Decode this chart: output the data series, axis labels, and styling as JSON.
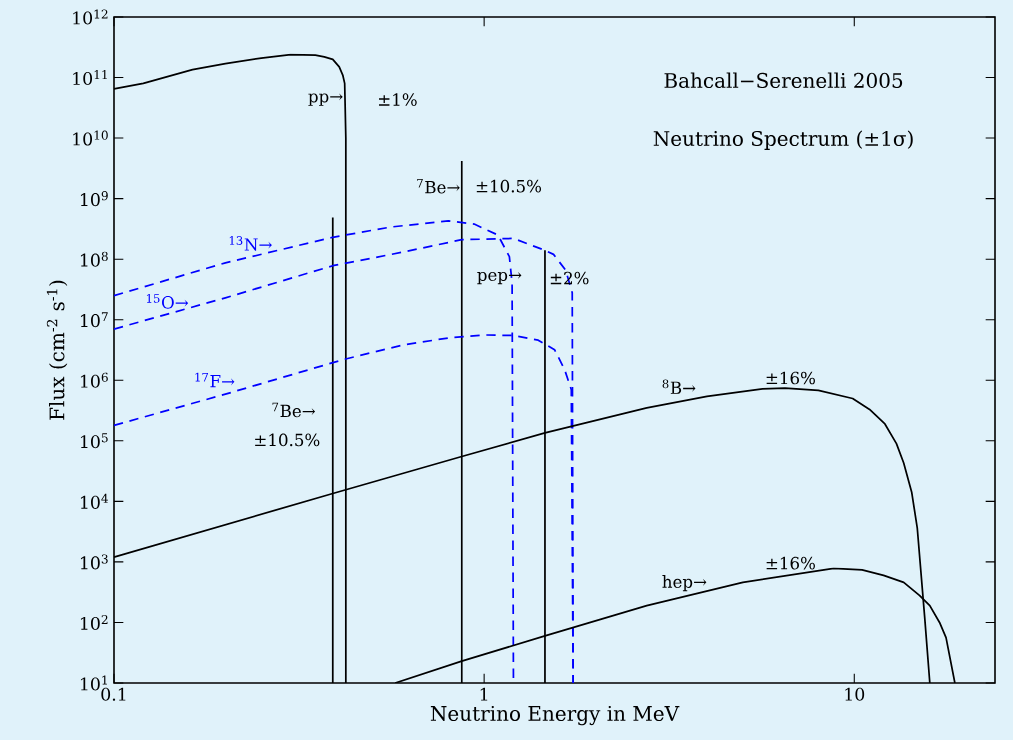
{
  "chart_data": {
    "type": "line",
    "title": "Bahcall−Serenelli 2005",
    "subtitle": "Neutrino Spectrum (±1σ)",
    "xlabel": "Neutrino Energy in MeV",
    "ylabel": "Flux (cm$^{-2}$ s$^{-1}$)",
    "log": "xy",
    "xlim": [
      0.1,
      24
    ],
    "ylim": [
      10,
      1000000000000
    ],
    "xticks": [
      0.1,
      1,
      10
    ],
    "yticks": [
      {
        "value": 10,
        "label": "10$^{1}$"
      },
      {
        "value": 100,
        "label": "10$^{2}$"
      },
      {
        "value": 1000,
        "label": "10$^{3}$"
      },
      {
        "value": 10000,
        "label": "10$^{4}$"
      },
      {
        "value": 100000,
        "label": "10$^{5}$"
      },
      {
        "value": 1000000,
        "label": "10$^{6}$"
      },
      {
        "value": 10000000,
        "label": "10$^{7}$"
      },
      {
        "value": 100000000,
        "label": "10$^{8}$"
      },
      {
        "value": 1000000000,
        "label": "10$^{9}$"
      },
      {
        "value": 10000000000,
        "label": "10$^{10}$"
      },
      {
        "value": 100000000000,
        "label": "10$^{11}$"
      },
      {
        "value": 1000000000000,
        "label": "10$^{12}$"
      }
    ],
    "marker": "none",
    "series": [
      {
        "color": "#000000",
        "line_style": "solid",
        "x": [
          0.1,
          0.12,
          0.163,
          0.2,
          0.25,
          0.3,
          0.35,
          0.37,
          0.39,
          0.406,
          0.415,
          0.42,
          0.423,
          0.423
        ],
        "values": [
          65000000000,
          80000000000,
          135000000000,
          170000000000,
          210000000000,
          240000000000,
          235000000000,
          220000000000,
          200000000000,
          150000000000,
          110000000000,
          80000000000,
          10000000000,
          10
        ]
      },
      {
        "color": "#000000",
        "line_style": "solid",
        "x": [
          0.39,
          0.39
        ],
        "values": [
          10,
          490000000
        ]
      },
      {
        "color": "#000000",
        "line_style": "solid",
        "x": [
          0.87,
          0.87
        ],
        "values": [
          10,
          4200000000
        ]
      },
      {
        "color": "#000000",
        "line_style": "solid",
        "x": [
          1.46,
          1.46
        ],
        "values": [
          10,
          140000000
        ]
      },
      {
        "color": "#0000ff",
        "line_style": "dashed",
        "x": [
          0.1,
          0.2,
          0.39,
          0.56,
          0.8,
          0.94,
          1.09,
          1.17,
          1.19,
          1.2
        ],
        "values": [
          25000000,
          87000000,
          230000000,
          340000000,
          430000000,
          380000000,
          250000000,
          110000000,
          40000000,
          10
        ]
      },
      {
        "color": "#0000ff",
        "line_style": "dashed",
        "x": [
          0.1,
          0.2,
          0.39,
          0.6,
          0.87,
          1.2,
          1.46,
          1.54,
          1.66,
          1.73,
          1.74
        ],
        "values": [
          7000000,
          23000000,
          78000000,
          130000000,
          210000000,
          220000000,
          140000000,
          120000000,
          66000000,
          28000000,
          10
        ]
      },
      {
        "color": "#0000ff",
        "line_style": "dashed",
        "x": [
          0.1,
          0.2,
          0.417,
          0.6,
          0.8,
          1.0,
          1.2,
          1.4,
          1.55,
          1.65,
          1.72,
          1.74
        ],
        "values": [
          180000,
          590000,
          2200000,
          3800000,
          5000000,
          5600000,
          5500000,
          4600000,
          3200000,
          1500000,
          700000,
          10
        ]
      },
      {
        "color": "#000000",
        "line_style": "solid",
        "x": [
          0.1,
          0.39,
          0.87,
          1.46,
          2.75,
          4.0,
          5.65,
          6.5,
          8.0,
          9.9,
          11.0,
          12.1,
          13.0,
          13.6,
          14.3,
          14.8,
          15.5,
          16.0
        ],
        "values": [
          1200,
          13500,
          55000,
          135000,
          350000,
          540000,
          720000,
          740000,
          680000,
          500000,
          330000,
          190000,
          90000,
          43000,
          14000,
          3600,
          120,
          10
        ]
      },
      {
        "color": "#000000",
        "line_style": "solid",
        "x": [
          0.575,
          0.87,
          1.46,
          2.75,
          5.0,
          8.8,
          10.5,
          12.0,
          13.6,
          15.0,
          16.0,
          17.0,
          17.7,
          18.7
        ],
        "values": [
          10,
          23,
          60,
          190,
          460,
          780,
          740,
          600,
          460,
          280,
          190,
          100,
          56,
          10
        ]
      }
    ],
    "annotations": [
      "pp→",
      "±1%",
      "$^{7}$Be→",
      "±10.5%",
      "pep→",
      "±2%",
      "$^{13}$N→",
      "$^{15}$O→",
      "$^{17}$F→",
      "$^{7}$Be→",
      "±10.5%",
      "$^{8}$B→",
      "±16%",
      "hep→",
      "±16%"
    ]
  }
}
